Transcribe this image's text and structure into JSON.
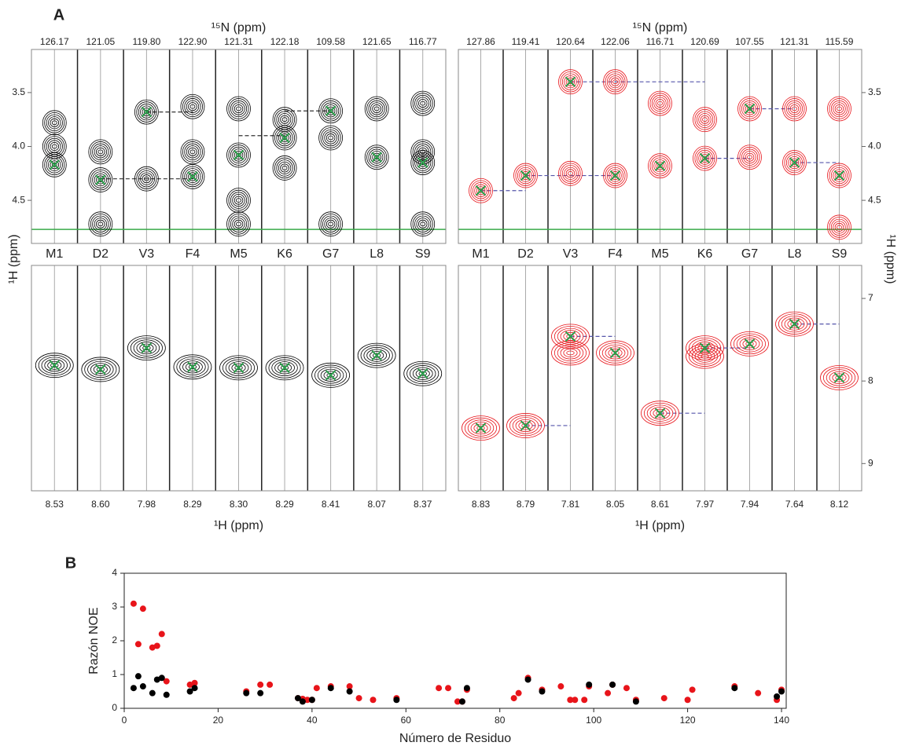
{
  "chart_data": [
    {
      "type": "strip",
      "panel_label": "A",
      "n15_title": "¹⁵N (ppm)",
      "xlabel": "¹H (ppm)",
      "ylabel": "¹H (ppm)",
      "color": "#000000",
      "cross_color": "#2a9d4a",
      "water_color": "#3aaa4a",
      "link_color": "#333333",
      "residues": [
        "M1",
        "D2",
        "V3",
        "F4",
        "M5",
        "K6",
        "G7",
        "L8",
        "S9"
      ],
      "n15": [
        "126.17",
        "121.05",
        "119.80",
        "122.90",
        "121.31",
        "122.18",
        "109.58",
        "121.65",
        "116.77"
      ],
      "h1": [
        "8.53",
        "8.60",
        "7.98",
        "8.29",
        "8.30",
        "8.29",
        "8.41",
        "8.07",
        "8.37"
      ],
      "top": {
        "ylim": [
          3.1,
          4.9
        ],
        "yticks": [
          3.5,
          {
            "value": 4,
            "label": "4.0"
          },
          4.5
        ],
        "water": 4.77,
        "peaks": [
          [
            3.78,
            4.0,
            4.17
          ],
          [
            4.05,
            4.31,
            4.72
          ],
          [
            3.68,
            4.3
          ],
          [
            3.63,
            4.05,
            4.28
          ],
          [
            3.65,
            4.08,
            4.5,
            4.72
          ],
          [
            3.75,
            3.92,
            4.2
          ],
          [
            3.67,
            3.92,
            4.72
          ],
          [
            3.65,
            4.1
          ],
          [
            3.6,
            4.05,
            4.15,
            4.72
          ]
        ],
        "crosses": [
          4.17,
          4.31,
          3.68,
          4.28,
          4.08,
          3.92,
          3.67,
          4.1,
          4.15
        ],
        "links": [
          {
            "y": 3.68,
            "from": "V3",
            "to": "F4"
          },
          {
            "y": 4.3,
            "from": "D2",
            "to": "F4"
          },
          {
            "y": 3.9,
            "from": "M5",
            "to": "K6"
          },
          {
            "y": 3.67,
            "from": "K6",
            "to": "G7"
          }
        ]
      },
      "bottom": {
        "ylim": [
          6.6,
          9.33
        ],
        "peaks": [
          [
            7.81
          ],
          [
            7.86
          ],
          [
            7.6
          ],
          [
            7.83
          ],
          [
            7.84
          ],
          [
            7.84
          ],
          [
            7.93
          ],
          [
            7.69
          ],
          [
            7.91
          ]
        ],
        "crosses": [
          7.81,
          7.86,
          7.6,
          7.83,
          7.84,
          7.84,
          7.93,
          7.69,
          7.91
        ]
      }
    },
    {
      "type": "strip",
      "n15_title": "¹⁵N (ppm)",
      "xlabel": "¹H (ppm)",
      "ylabel": "¹H (ppm)",
      "color": "#e8141a",
      "cross_color": "#2a9d4a",
      "water_color": "#3aaa4a",
      "link_color": "#5555aa",
      "residues": [
        "M1",
        "D2",
        "V3",
        "F4",
        "M5",
        "K6",
        "G7",
        "L8",
        "S9"
      ],
      "n15": [
        "127.86",
        "119.41",
        "120.64",
        "122.06",
        "116.71",
        "120.69",
        "107.55",
        "121.31",
        "115.59"
      ],
      "h1": [
        "8.83",
        "8.79",
        "7.81",
        "8.05",
        "8.61",
        "7.97",
        "7.94",
        "7.64",
        "8.12"
      ],
      "top": {
        "ylim": [
          3.1,
          4.9
        ],
        "yticks": [
          3.5,
          {
            "value": 4,
            "label": "4.0"
          },
          4.5
        ],
        "water": 4.77,
        "peaks": [
          [
            4.41
          ],
          [
            4.27
          ],
          [
            3.4,
            4.25
          ],
          [
            3.4,
            4.27
          ],
          [
            3.6,
            4.18
          ],
          [
            3.75,
            4.11
          ],
          [
            3.65,
            4.1
          ],
          [
            3.65,
            4.15
          ],
          [
            3.65,
            4.27,
            4.75
          ]
        ],
        "crosses": [
          4.41,
          4.27,
          3.4,
          4.27,
          4.18,
          4.11,
          3.65,
          4.15,
          4.27
        ],
        "links": [
          {
            "y": 3.4,
            "from": "V3",
            "to": "K6"
          },
          {
            "y": 4.41,
            "from": "M1",
            "to": "D2"
          },
          {
            "y": 4.27,
            "from": "D2",
            "to": "F4"
          },
          {
            "y": 4.11,
            "from": "K6",
            "to": "G7"
          },
          {
            "y": 3.65,
            "from": "G7",
            "to": "L8"
          },
          {
            "y": 4.15,
            "from": "L8",
            "to": "S9"
          }
        ]
      },
      "bottom": {
        "ylim": [
          6.6,
          9.33
        ],
        "yticks": [
          7,
          8,
          9
        ],
        "peaks": [
          [
            8.57
          ],
          [
            8.54
          ],
          [
            7.46,
            7.66
          ],
          [
            7.66
          ],
          [
            8.39
          ],
          [
            7.6,
            7.7
          ],
          [
            7.55
          ],
          [
            7.31
          ],
          [
            7.96
          ]
        ],
        "crosses": [
          8.57,
          8.54,
          7.46,
          7.66,
          8.39,
          7.6,
          7.55,
          7.31,
          7.96
        ],
        "links": [
          {
            "y": 8.54,
            "from": "D2",
            "to": "V3"
          },
          {
            "y": 7.46,
            "from": "V3",
            "to": "F4"
          },
          {
            "y": 8.39,
            "from": "M5",
            "to": "K6"
          },
          {
            "y": 7.6,
            "from": "K6",
            "to": "G7"
          },
          {
            "y": 7.31,
            "from": "L8",
            "to": "S9"
          }
        ]
      }
    },
    {
      "type": "scatter",
      "panel_label": "B",
      "xlabel": "Número de Residuo",
      "ylabel": "Razón NOE",
      "xlim": [
        0,
        141
      ],
      "ylim": [
        0,
        4
      ],
      "xticks": [
        0,
        20,
        40,
        60,
        80,
        100,
        120,
        140
      ],
      "yticks": [
        0,
        1,
        2,
        3,
        4
      ],
      "series": [
        {
          "color": "#e8141a",
          "x": [
            2,
            3,
            4,
            6,
            7,
            8,
            9,
            14,
            15,
            26,
            29,
            31,
            37,
            38,
            39,
            40,
            41,
            44,
            48,
            50,
            53,
            58,
            67,
            69,
            71,
            72,
            73,
            83,
            84,
            86,
            89,
            93,
            95,
            96,
            98,
            99,
            103,
            104,
            107,
            109,
            115,
            120,
            121,
            130,
            135,
            139,
            140
          ],
          "values": [
            3.1,
            1.9,
            2.95,
            1.8,
            1.85,
            2.2,
            0.8,
            0.7,
            0.75,
            0.5,
            0.7,
            0.7,
            0.3,
            0.28,
            0.25,
            0.25,
            0.6,
            0.65,
            0.65,
            0.3,
            0.25,
            0.3,
            0.6,
            0.6,
            0.2,
            0.2,
            0.55,
            0.3,
            0.45,
            0.9,
            0.55,
            0.65,
            0.25,
            0.25,
            0.25,
            0.65,
            0.45,
            0.7,
            0.6,
            0.25,
            0.3,
            0.25,
            0.55,
            0.65,
            0.45,
            0.25,
            0.55
          ]
        },
        {
          "color": "#000000",
          "x": [
            2,
            3,
            4,
            6,
            7,
            8,
            9,
            14,
            15,
            26,
            29,
            37,
            38,
            40,
            44,
            48,
            58,
            72,
            73,
            86,
            89,
            99,
            104,
            109,
            130,
            139,
            140
          ],
          "values": [
            0.6,
            0.95,
            0.65,
            0.45,
            0.85,
            0.9,
            0.4,
            0.5,
            0.6,
            0.45,
            0.45,
            0.3,
            0.2,
            0.25,
            0.6,
            0.5,
            0.25,
            0.2,
            0.6,
            0.85,
            0.5,
            0.7,
            0.7,
            0.2,
            0.6,
            0.35,
            0.5
          ]
        }
      ]
    }
  ]
}
